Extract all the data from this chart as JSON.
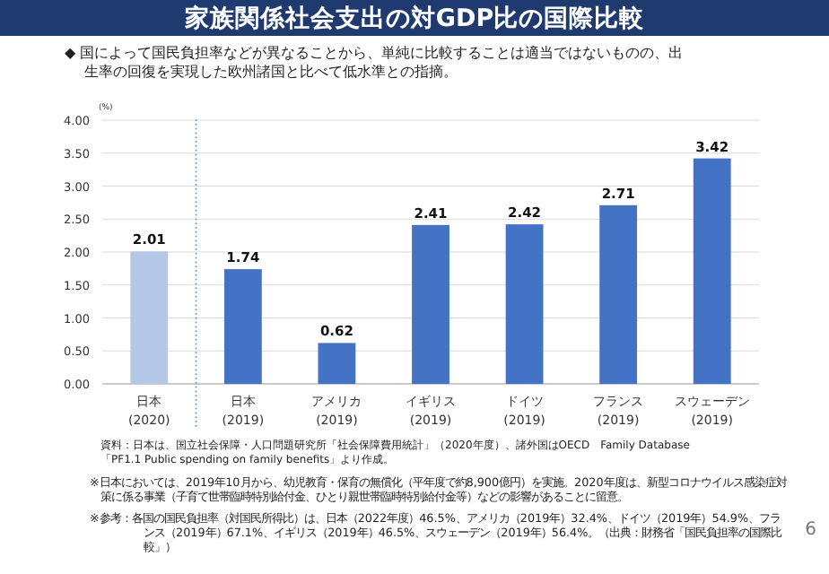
{
  "chart_data": {
    "type": "bar",
    "title": "家族関係社会支出の対GDP比の国際比較",
    "subtitle": "◆ 国によって国民負担率などが異なることから、単純に比較することは適当ではないものの、出生率の回復を実現した欧州諸国と比べて低水準との指摘。",
    "ylabel": "(%)",
    "categories": [
      "日本\n(2020)",
      "日本\n(2019)",
      "アメリカ\n(2019)",
      "イギリス\n(2019)",
      "ドイツ\n(2019)",
      "フランス\n(2019)",
      "スウェーデン\n(2019)"
    ],
    "values": [
      2.01,
      1.74,
      0.62,
      2.41,
      2.42,
      2.71,
      3.42
    ],
    "colors": [
      "#b4c7e7",
      "#4472c4",
      "#4472c4",
      "#4472c4",
      "#4472c4",
      "#4472c4",
      "#4472c4"
    ],
    "ylim": [
      0,
      4
    ],
    "yticks": [
      {
        "value": 0,
        "label": "0.00"
      },
      {
        "value": 0.5,
        "label": "0.50"
      },
      {
        "value": 1,
        "label": "1.00"
      },
      {
        "value": 1.5,
        "label": "1.50"
      },
      {
        "value": 2,
        "label": "2.00"
      },
      {
        "value": 2.5,
        "label": "2.50"
      },
      {
        "value": 3,
        "label": "3.00"
      },
      {
        "value": 3.5,
        "label": "3.50"
      },
      {
        "value": 4,
        "label": "4.00"
      }
    ],
    "grid": "y",
    "data_labels": true,
    "annotations": [
      "資料：日本は、国立社会保障・人口問題研究所「社会保障費用統計」（2020年度）、諸外国はOECD　Family Database\n「PF1.1 Public spending on family benefits」より作成。",
      "※日本においては、2019年10月から、幼児教育・保育の無償化（平年度で約8,900億円）を実施。2020年度は、新型コロナウイルス感染症対策に係る事業（子育て世帯臨時特別給付金、ひとり親世帯臨時特別給付金等）などの影響があることに留意。",
      "※参考：各国の国民負担率（対国民所得比）は、日本（2022年度）46.5%、アメリカ（2019年）32.4%、ドイツ（2019年）54.9%、フランス（2019年）67.1%、イギリス（2019年）46.5%、スウェーデン（2019年）56.4%。（出典：財務省「国民負担率の国際比較」）",
      "6"
    ]
  }
}
